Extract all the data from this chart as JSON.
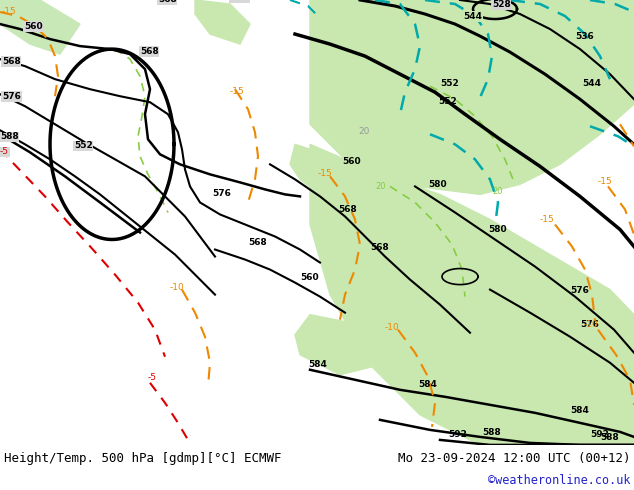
{
  "title_left": "Height/Temp. 500 hPa [gdmp][°C] ECMWF",
  "title_right": "Mo 23-09-2024 12:00 UTC (00+12)",
  "credit": "©weatheronline.co.uk",
  "bg_color": "#ffffff",
  "map_bg_gray": "#d4d4d4",
  "map_bg_green": "#d0eac8",
  "map_bg_green2": "#b8dba8",
  "land_gray": "#bbbbbb",
  "contour_black": "#000000",
  "contour_cyan": "#00bbbb",
  "contour_orange": "#ee8800",
  "contour_red": "#dd0000",
  "contour_lgreen": "#88cc44",
  "label_gray": "#999999"
}
